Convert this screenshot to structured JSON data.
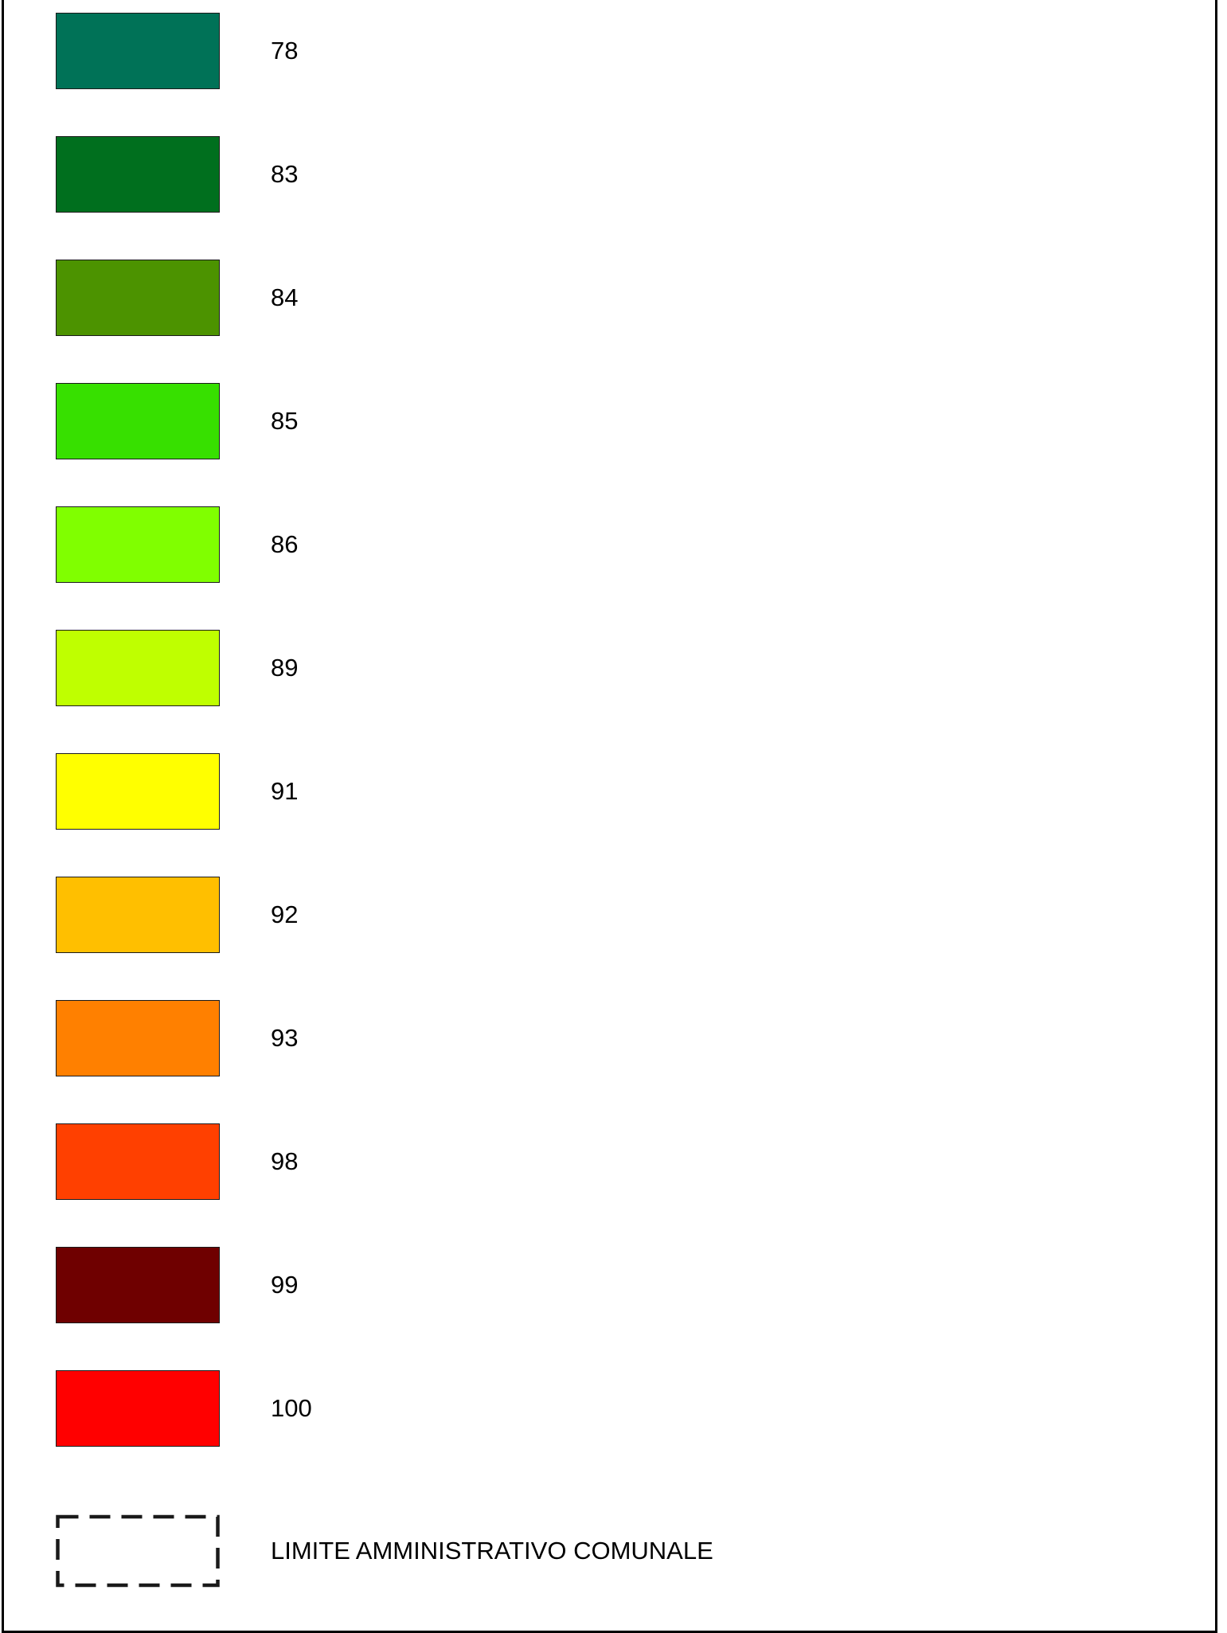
{
  "legend": {
    "items": [
      {
        "label": "78",
        "color": "#007257"
      },
      {
        "label": "83",
        "color": "#006f1e"
      },
      {
        "label": "84",
        "color": "#4c9300"
      },
      {
        "label": "85",
        "color": "#37e000"
      },
      {
        "label": "86",
        "color": "#80ff00"
      },
      {
        "label": "89",
        "color": "#bfff00"
      },
      {
        "label": "91",
        "color": "#ffff00"
      },
      {
        "label": "92",
        "color": "#ffbf00"
      },
      {
        "label": "93",
        "color": "#ff8000"
      },
      {
        "label": "98",
        "color": "#ff4000"
      },
      {
        "label": "99",
        "color": "#6f0000"
      },
      {
        "label": "100",
        "color": "#ff0000"
      }
    ],
    "boundary": {
      "label": "LIMITE AMMINISTRATIVO COMUNALE",
      "line_style": "dashed",
      "line_color": "#1a1a1a"
    }
  }
}
